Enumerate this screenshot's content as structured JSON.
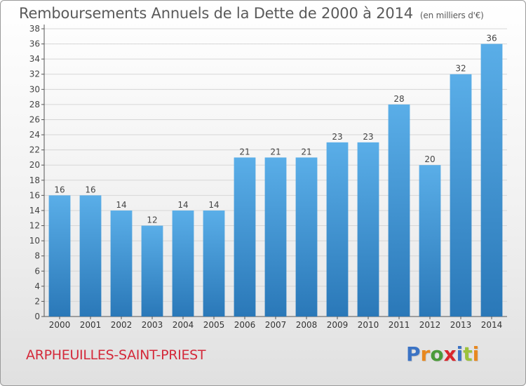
{
  "title": "Remboursements Annuels de la Dette de 2000 à 2014",
  "unit": "(en milliers d'€)",
  "commune": "ARPHEUILLES-SAINT-PRIEST",
  "logo": {
    "letters": [
      "P",
      "r",
      "o",
      "x",
      "i",
      "t",
      "i"
    ],
    "colors": [
      "#3b73c4",
      "#e8881f",
      "#4b9b3a",
      "#d9262c",
      "#3b73c4",
      "#9cc23a",
      "#e8881f"
    ]
  },
  "chart_data": {
    "type": "bar",
    "categories": [
      "2000",
      "2001",
      "2002",
      "2003",
      "2004",
      "2005",
      "2006",
      "2007",
      "2008",
      "2009",
      "2010",
      "2011",
      "2012",
      "2013",
      "2014"
    ],
    "values": [
      16,
      16,
      14,
      12,
      14,
      14,
      21,
      21,
      21,
      23,
      23,
      28,
      20,
      32,
      36
    ],
    "ylim": [
      0,
      38
    ],
    "yticks": [
      0,
      2,
      4,
      6,
      8,
      10,
      12,
      14,
      16,
      18,
      20,
      22,
      24,
      26,
      28,
      30,
      32,
      34,
      36,
      38
    ],
    "grid": true,
    "bar_color_top": "#5aaee8",
    "bar_color_bottom": "#2a78b8"
  }
}
